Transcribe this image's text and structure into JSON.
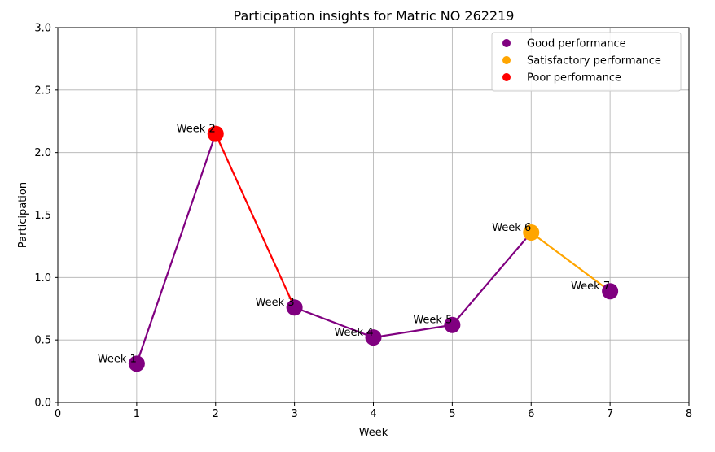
{
  "chart_data": {
    "type": "line",
    "title": "Participation insights for Matric NO 262219",
    "xlabel": "Week",
    "ylabel": "Participation",
    "xlim": [
      0,
      8
    ],
    "ylim": [
      0,
      3.0
    ],
    "xticks": [
      "0",
      "1",
      "2",
      "3",
      "4",
      "5",
      "6",
      "7",
      "8"
    ],
    "yticks": [
      "0.0",
      "0.5",
      "1.0",
      "1.5",
      "2.0",
      "2.5",
      "3.0"
    ],
    "grid": true,
    "legend_position": "top-right",
    "categories_legend": [
      {
        "name": "Good performance",
        "color": "#800080"
      },
      {
        "name": "Satisfactory performance",
        "color": "#FFA500"
      },
      {
        "name": "Poor performance",
        "color": "#FF0000"
      }
    ],
    "points": [
      {
        "x": 1,
        "y": 0.31,
        "label": "Week 1",
        "color": "#800080"
      },
      {
        "x": 2,
        "y": 2.15,
        "label": "Week 2",
        "color": "#FF0000"
      },
      {
        "x": 3,
        "y": 0.76,
        "label": "Week 3",
        "color": "#800080"
      },
      {
        "x": 4,
        "y": 0.52,
        "label": "Week 4",
        "color": "#800080"
      },
      {
        "x": 5,
        "y": 0.62,
        "label": "Week 5",
        "color": "#800080"
      },
      {
        "x": 6,
        "y": 1.36,
        "label": "Week 6",
        "color": "#FFA500"
      },
      {
        "x": 7,
        "y": 0.89,
        "label": "Week 7",
        "color": "#800080"
      }
    ]
  }
}
